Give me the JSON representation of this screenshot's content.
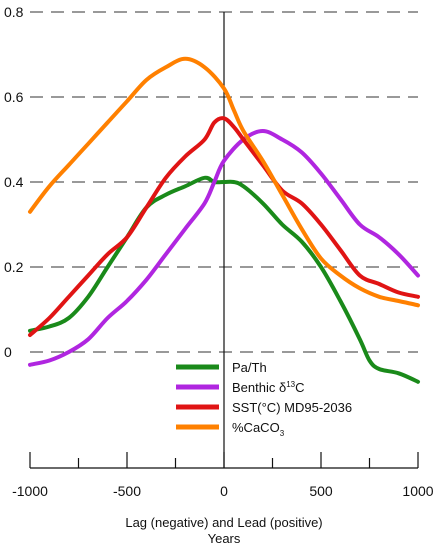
{
  "chart_data": {
    "type": "line",
    "xlabel": "Lag (negative) and Lead (positive)",
    "xlabel_unit": "Years",
    "xlim": [
      -1000,
      1000
    ],
    "ylim": [
      0,
      0.8
    ],
    "xticks": [
      -1000,
      -500,
      0,
      500,
      1000
    ],
    "xtick_labels": [
      "-1000",
      "-500",
      "0",
      "500",
      "1000"
    ],
    "yticks": [
      0,
      0.2,
      0.4,
      0.6,
      0.8
    ],
    "ytick_labels": [
      "0",
      "0.2",
      "0.4",
      "0.6",
      "0.8"
    ],
    "grid": "dashed horizontal",
    "legend_position": "bottom-center",
    "series": [
      {
        "name": "Pa/Th",
        "color": "#1a8a1a",
        "points": [
          [
            -1000,
            0.05
          ],
          [
            -900,
            0.06
          ],
          [
            -800,
            0.08
          ],
          [
            -700,
            0.13
          ],
          [
            -600,
            0.2
          ],
          [
            -500,
            0.27
          ],
          [
            -400,
            0.34
          ],
          [
            -300,
            0.37
          ],
          [
            -200,
            0.39
          ],
          [
            -100,
            0.41
          ],
          [
            -50,
            0.4
          ],
          [
            0,
            0.4
          ],
          [
            50,
            0.4
          ],
          [
            100,
            0.39
          ],
          [
            200,
            0.35
          ],
          [
            300,
            0.3
          ],
          [
            400,
            0.26
          ],
          [
            500,
            0.2
          ],
          [
            600,
            0.12
          ],
          [
            700,
            0.03
          ],
          [
            750,
            -0.02
          ],
          [
            800,
            -0.04
          ],
          [
            900,
            -0.05
          ],
          [
            1000,
            -0.07
          ]
        ]
      },
      {
        "name": "Benthic δ13C",
        "color": "#b026e0",
        "points": [
          [
            -1000,
            -0.03
          ],
          [
            -900,
            -0.02
          ],
          [
            -800,
            0.0
          ],
          [
            -700,
            0.03
          ],
          [
            -600,
            0.08
          ],
          [
            -500,
            0.12
          ],
          [
            -400,
            0.17
          ],
          [
            -300,
            0.23
          ],
          [
            -200,
            0.29
          ],
          [
            -100,
            0.35
          ],
          [
            -50,
            0.4
          ],
          [
            0,
            0.45
          ],
          [
            100,
            0.5
          ],
          [
            200,
            0.52
          ],
          [
            300,
            0.5
          ],
          [
            400,
            0.47
          ],
          [
            500,
            0.42
          ],
          [
            600,
            0.36
          ],
          [
            700,
            0.3
          ],
          [
            800,
            0.27
          ],
          [
            900,
            0.23
          ],
          [
            1000,
            0.18
          ]
        ]
      },
      {
        "name": "SST(°C) MD95-2036",
        "color": "#e01414",
        "points": [
          [
            -1000,
            0.04
          ],
          [
            -900,
            0.08
          ],
          [
            -800,
            0.13
          ],
          [
            -700,
            0.18
          ],
          [
            -600,
            0.23
          ],
          [
            -500,
            0.27
          ],
          [
            -400,
            0.34
          ],
          [
            -300,
            0.41
          ],
          [
            -200,
            0.46
          ],
          [
            -100,
            0.5
          ],
          [
            -50,
            0.54
          ],
          [
            0,
            0.55
          ],
          [
            50,
            0.53
          ],
          [
            100,
            0.5
          ],
          [
            200,
            0.44
          ],
          [
            300,
            0.38
          ],
          [
            400,
            0.35
          ],
          [
            500,
            0.3
          ],
          [
            600,
            0.24
          ],
          [
            700,
            0.18
          ],
          [
            800,
            0.16
          ],
          [
            900,
            0.14
          ],
          [
            1000,
            0.13
          ]
        ]
      },
      {
        "name": "%CaCO3",
        "color": "#ff8000",
        "points": [
          [
            -1000,
            0.33
          ],
          [
            -900,
            0.39
          ],
          [
            -800,
            0.44
          ],
          [
            -700,
            0.49
          ],
          [
            -600,
            0.54
          ],
          [
            -500,
            0.59
          ],
          [
            -400,
            0.64
          ],
          [
            -300,
            0.67
          ],
          [
            -200,
            0.69
          ],
          [
            -100,
            0.67
          ],
          [
            0,
            0.62
          ],
          [
            50,
            0.57
          ],
          [
            100,
            0.52
          ],
          [
            200,
            0.45
          ],
          [
            300,
            0.37
          ],
          [
            400,
            0.29
          ],
          [
            500,
            0.22
          ],
          [
            600,
            0.18
          ],
          [
            700,
            0.15
          ],
          [
            800,
            0.13
          ],
          [
            900,
            0.12
          ],
          [
            1000,
            0.11
          ]
        ]
      }
    ],
    "legend_entries": [
      {
        "label": "Pa/Th",
        "color": "#1a8a1a"
      },
      {
        "label": "Benthic δ",
        "sup": "13",
        "tail": "C",
        "color": "#b026e0"
      },
      {
        "label": "SST(°C) MD95-2036",
        "color": "#e01414"
      },
      {
        "label": "%CaCO",
        "sub": "3",
        "color": "#ff8000"
      }
    ]
  }
}
